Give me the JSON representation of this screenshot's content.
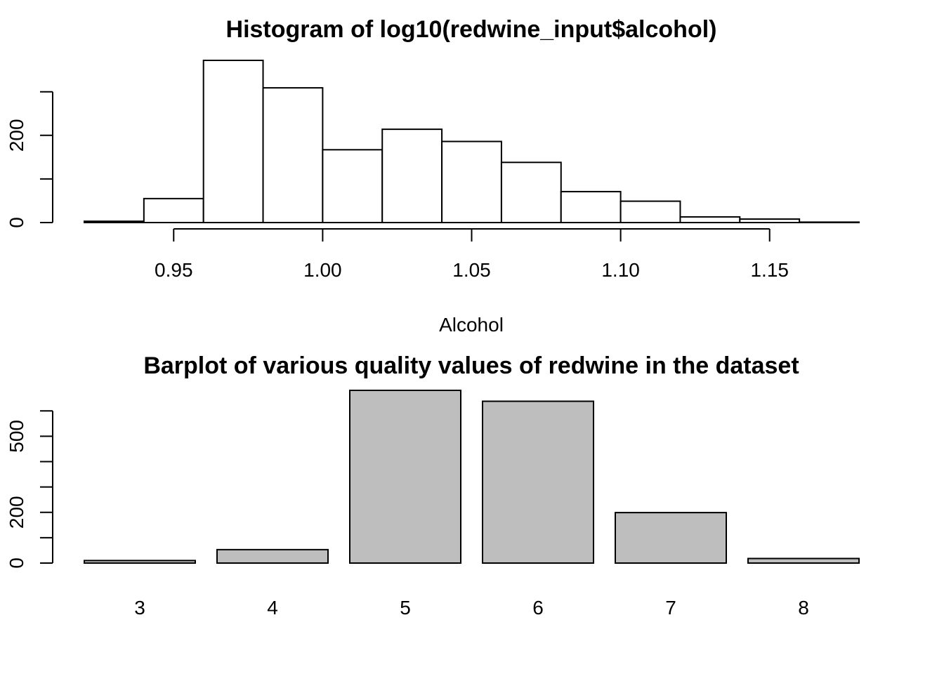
{
  "chart_data": [
    {
      "type": "bar",
      "subtype": "histogram",
      "title": "Histogram of log10(redwine_input$alcohol)",
      "xlabel": "Alcohol",
      "ylabel": "",
      "xlim": [
        0.92,
        1.18
      ],
      "ylim": [
        0,
        372
      ],
      "x_ticks": [
        0.95,
        1.0,
        1.05,
        1.1,
        1.15
      ],
      "x_tick_labels": [
        "0.95",
        "1.00",
        "1.05",
        "1.10",
        "1.15"
      ],
      "y_ticks": [
        0,
        100,
        200,
        300
      ],
      "y_tick_labels": [
        "0",
        "200"
      ],
      "bin_edges": [
        0.92,
        0.94,
        0.96,
        0.98,
        1.0,
        1.02,
        1.04,
        1.06,
        1.08,
        1.1,
        1.12,
        1.14,
        1.16,
        1.18
      ],
      "values": [
        3,
        55,
        372,
        309,
        167,
        214,
        186,
        138,
        71,
        49,
        13,
        8,
        1
      ],
      "bar_fill": "#ffffff",
      "bar_stroke": "#000000",
      "grid": false
    },
    {
      "type": "bar",
      "title": "Barplot of various quality values of redwine in the dataset",
      "xlabel": "",
      "ylabel": "",
      "categories": [
        "3",
        "4",
        "5",
        "6",
        "7",
        "8"
      ],
      "values": [
        10,
        53,
        681,
        638,
        199,
        18
      ],
      "ylim": [
        0,
        681
      ],
      "y_ticks": [
        0,
        100,
        200,
        300,
        400,
        500,
        600
      ],
      "y_tick_labels": [
        "0",
        "200",
        "500"
      ],
      "y_tick_label_values": [
        0,
        200,
        500
      ],
      "bar_fill": "#bebebe",
      "bar_stroke": "#000000",
      "grid": false
    }
  ]
}
